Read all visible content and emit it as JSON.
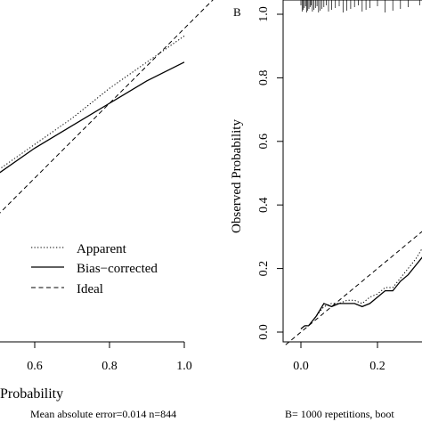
{
  "chart_data": [
    {
      "panel": "A",
      "type": "line",
      "xlabel_visible": "Probability",
      "x_ticks": [
        "0.6",
        "0.8",
        "1.0"
      ],
      "legend": {
        "placement": "bottom-right",
        "entries": [
          "Apparent",
          "Bias−corrected",
          "Ideal"
        ]
      },
      "footer": "Mean absolute error=0.014 n=844",
      "xlim": [
        0.4,
        1.08
      ],
      "ylim": [
        0.4,
        1.0
      ],
      "series": [
        {
          "name": "Apparent",
          "style": "dotted",
          "x": [
            0.4,
            0.5,
            0.6,
            0.7,
            0.8,
            0.9,
            1.0
          ],
          "y": [
            0.57,
            0.62,
            0.69,
            0.76,
            0.84,
            0.91,
            0.98
          ]
        },
        {
          "name": "Bias−corrected",
          "style": "solid",
          "x": [
            0.4,
            0.5,
            0.6,
            0.7,
            0.8,
            0.9,
            1.0
          ],
          "y": [
            0.55,
            0.61,
            0.68,
            0.74,
            0.8,
            0.86,
            0.91
          ]
        },
        {
          "name": "Ideal",
          "style": "dashed",
          "x": [
            0.4,
            0.6,
            0.8,
            1.0,
            1.08
          ],
          "y": [
            0.4,
            0.6,
            0.8,
            1.0,
            1.08
          ]
        }
      ]
    },
    {
      "panel": "B",
      "type": "line",
      "panel_label": "B",
      "ylabel": "Observed Probability",
      "x_ticks": [
        "0.0",
        "0.2"
      ],
      "y_ticks": [
        "0.0",
        "0.2",
        "0.4",
        "0.6",
        "0.8",
        "1.0"
      ],
      "footer": "B= 1000 repetitions, boot",
      "xlim": [
        -0.04,
        0.46
      ],
      "ylim": [
        -0.04,
        1.04
      ],
      "series": [
        {
          "name": "Apparent",
          "style": "dotted",
          "x": [
            0.0,
            0.01,
            0.02,
            0.04,
            0.06,
            0.08,
            0.1,
            0.12,
            0.14,
            0.16,
            0.18,
            0.2,
            0.22,
            0.24,
            0.26,
            0.28,
            0.3,
            0.32
          ],
          "y": [
            0.01,
            0.02,
            0.02,
            0.05,
            0.08,
            0.09,
            0.09,
            0.1,
            0.1,
            0.09,
            0.11,
            0.12,
            0.14,
            0.14,
            0.17,
            0.2,
            0.23,
            0.27
          ]
        },
        {
          "name": "Bias−corrected",
          "style": "solid",
          "x": [
            0.0,
            0.01,
            0.02,
            0.04,
            0.06,
            0.08,
            0.1,
            0.12,
            0.14,
            0.16,
            0.18,
            0.2,
            0.22,
            0.24,
            0.26,
            0.28,
            0.3,
            0.32
          ],
          "y": [
            0.01,
            0.02,
            0.02,
            0.05,
            0.09,
            0.08,
            0.09,
            0.09,
            0.09,
            0.08,
            0.09,
            0.11,
            0.13,
            0.13,
            0.16,
            0.18,
            0.21,
            0.24
          ]
        },
        {
          "name": "Ideal",
          "style": "dashed",
          "x": [
            -0.04,
            0.32
          ],
          "y": [
            -0.04,
            0.32
          ]
        }
      ],
      "rug": [
        0.0,
        0.003,
        0.006,
        0.009,
        0.012,
        0.015,
        0.018,
        0.021,
        0.024,
        0.027,
        0.03,
        0.034,
        0.038,
        0.042,
        0.046,
        0.05,
        0.055,
        0.06,
        0.066,
        0.072,
        0.08,
        0.09,
        0.1,
        0.11,
        0.12,
        0.13,
        0.14,
        0.15,
        0.16,
        0.17,
        0.18,
        0.2,
        0.22,
        0.24,
        0.26,
        0.28,
        0.31
      ]
    }
  ]
}
